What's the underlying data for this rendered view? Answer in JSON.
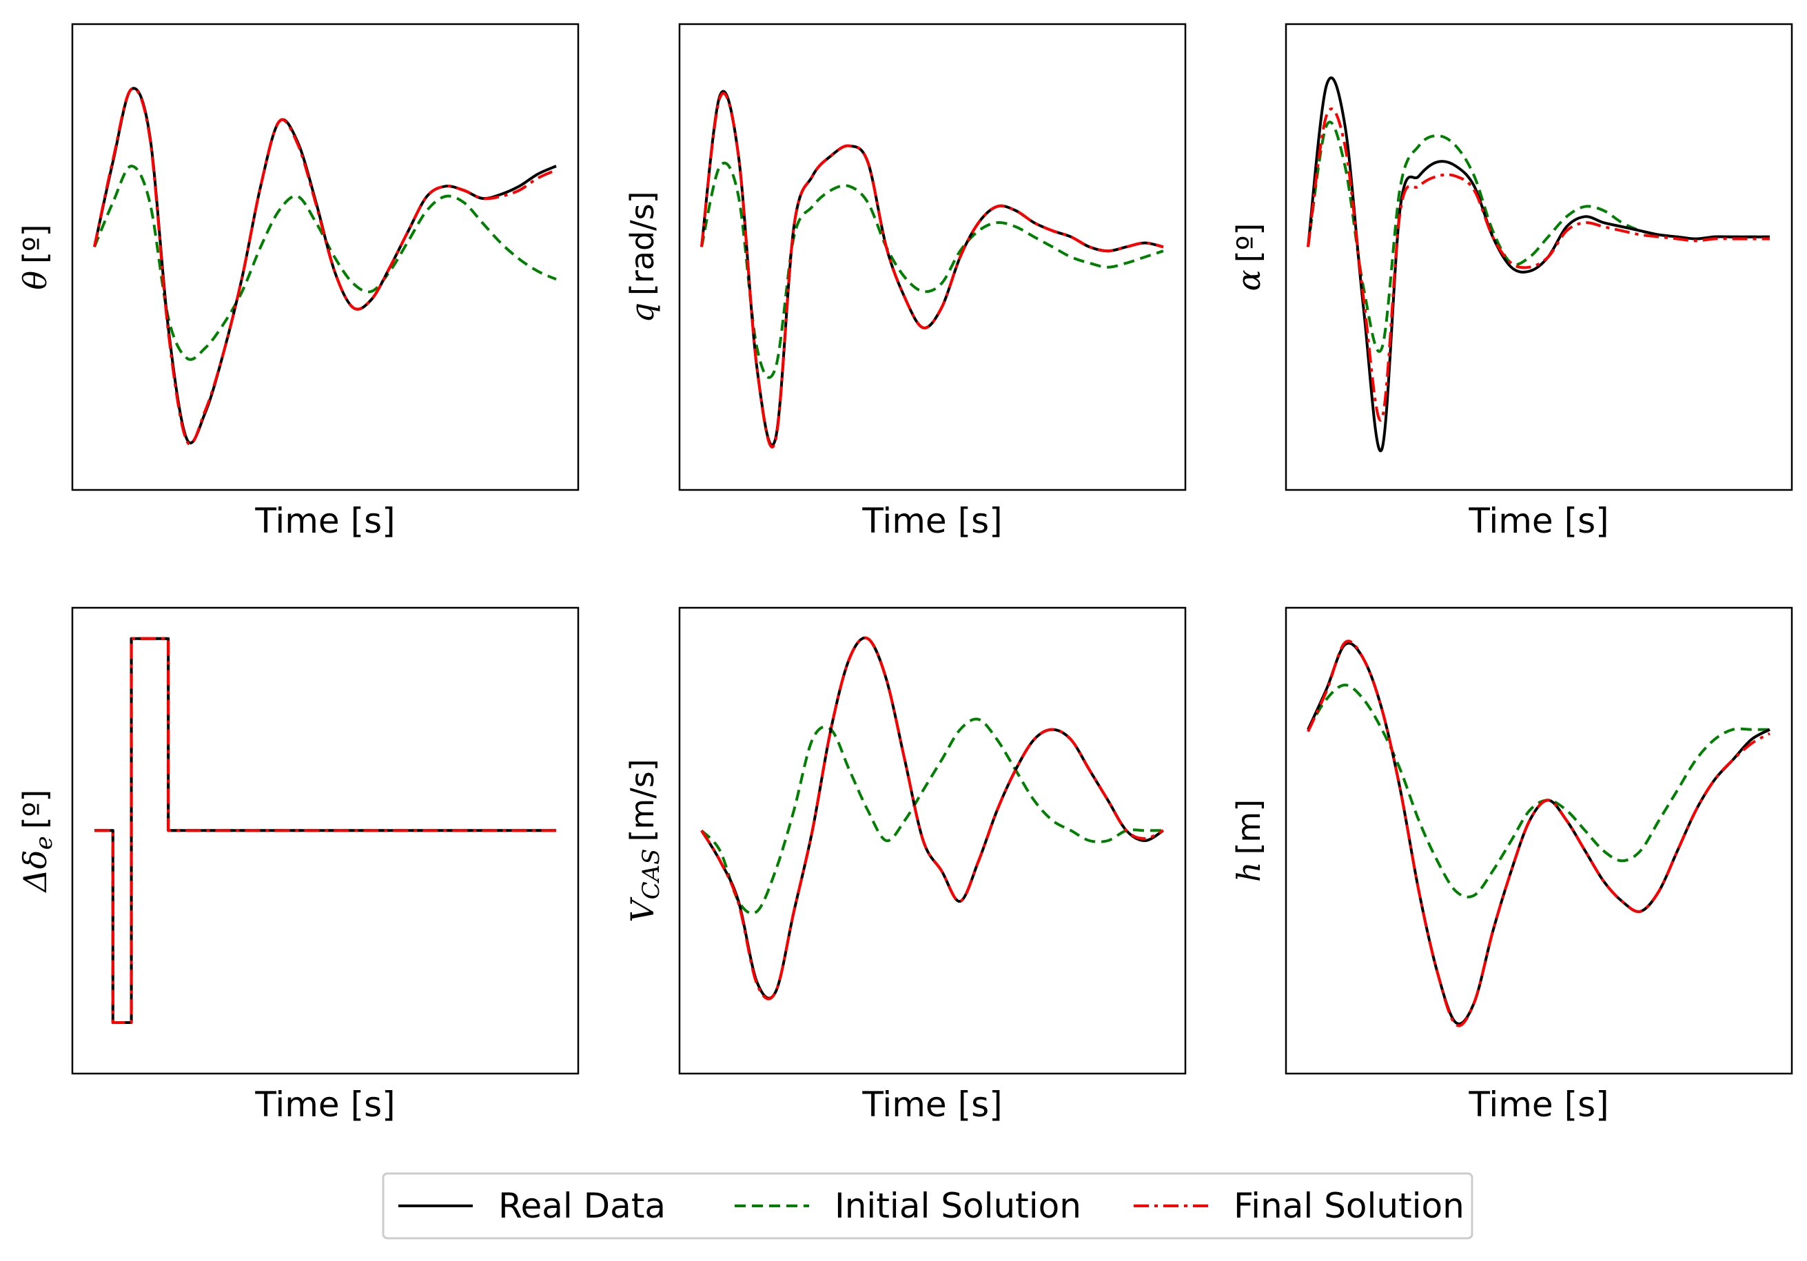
{
  "chart_data": [
    {
      "type": "line",
      "ylabel": {
        "symbol": "θ",
        "subscript": "",
        "unit": "[º]"
      },
      "xlabel": "Time [s]",
      "xlim": [
        0,
        10
      ],
      "ylim": [
        -1.1,
        1.0
      ],
      "ticks": "none",
      "series": [
        {
          "name": "Real Data",
          "x": [
            0,
            0.4,
            0.8,
            1.2,
            1.6,
            2.0,
            2.4,
            2.8,
            3.2,
            3.6,
            4.0,
            4.4,
            4.8,
            5.2,
            5.6,
            6.0,
            6.4,
            6.8,
            7.2,
            7.6,
            8.0,
            8.4,
            8.8,
            9.2,
            9.6,
            10
          ],
          "y": [
            0.0,
            0.42,
            0.78,
            0.55,
            -0.4,
            -0.95,
            -0.82,
            -0.52,
            -0.15,
            0.3,
            0.62,
            0.52,
            0.22,
            -0.12,
            -0.3,
            -0.26,
            -0.1,
            0.08,
            0.25,
            0.3,
            0.28,
            0.24,
            0.26,
            0.3,
            0.36,
            0.4
          ]
        },
        {
          "name": "Initial Solution",
          "x": [
            0,
            0.4,
            0.8,
            1.2,
            1.6,
            2.0,
            2.4,
            2.8,
            3.2,
            3.6,
            4.0,
            4.4,
            4.8,
            5.2,
            5.6,
            6.0,
            6.4,
            6.8,
            7.2,
            7.6,
            8.0,
            8.4,
            8.8,
            9.2,
            9.6,
            10
          ],
          "y": [
            0.0,
            0.22,
            0.4,
            0.22,
            -0.35,
            -0.55,
            -0.5,
            -0.38,
            -0.22,
            0.0,
            0.18,
            0.25,
            0.12,
            -0.05,
            -0.18,
            -0.22,
            -0.12,
            0.03,
            0.18,
            0.25,
            0.22,
            0.12,
            0.02,
            -0.06,
            -0.12,
            -0.16
          ]
        },
        {
          "name": "Final Solution",
          "x": [
            0,
            0.4,
            0.8,
            1.2,
            1.6,
            2.0,
            2.4,
            2.8,
            3.2,
            3.6,
            4.0,
            4.4,
            4.8,
            5.2,
            5.6,
            6.0,
            6.4,
            6.8,
            7.2,
            7.6,
            8.0,
            8.4,
            8.8,
            9.2,
            9.6,
            10
          ],
          "y": [
            0.0,
            0.43,
            0.78,
            0.54,
            -0.42,
            -0.96,
            -0.81,
            -0.52,
            -0.15,
            0.3,
            0.62,
            0.51,
            0.21,
            -0.12,
            -0.3,
            -0.26,
            -0.1,
            0.08,
            0.25,
            0.3,
            0.28,
            0.24,
            0.25,
            0.28,
            0.34,
            0.38
          ]
        }
      ]
    },
    {
      "type": "line",
      "ylabel": {
        "symbol": "q",
        "subscript": "",
        "unit": "[rad/s]"
      },
      "xlabel": "Time [s]",
      "xlim": [
        0,
        10
      ],
      "ylim": [
        -1.1,
        1.0
      ],
      "ticks": "none",
      "series": [
        {
          "name": "Real Data",
          "x": [
            0,
            0.4,
            0.8,
            1.2,
            1.6,
            2.0,
            2.4,
            2.8,
            3.2,
            3.6,
            4.0,
            4.4,
            4.8,
            5.2,
            5.6,
            6.0,
            6.4,
            6.8,
            7.2,
            7.6,
            8.0,
            8.4,
            8.8,
            9.2,
            9.6,
            10
          ],
          "y": [
            0.0,
            0.75,
            0.45,
            -0.6,
            -0.95,
            0.1,
            0.35,
            0.45,
            0.5,
            0.42,
            0.0,
            -0.25,
            -0.4,
            -0.3,
            -0.05,
            0.12,
            0.2,
            0.18,
            0.12,
            0.08,
            0.05,
            0.0,
            -0.02,
            0.0,
            0.02,
            0.0
          ]
        },
        {
          "name": "Initial Solution",
          "x": [
            0,
            0.4,
            0.8,
            1.2,
            1.6,
            2.0,
            2.4,
            2.8,
            3.2,
            3.6,
            4.0,
            4.4,
            4.8,
            5.2,
            5.6,
            6.0,
            6.4,
            6.8,
            7.2,
            7.6,
            8.0,
            8.4,
            8.8,
            9.2,
            9.6,
            10
          ],
          "y": [
            0.0,
            0.4,
            0.25,
            -0.5,
            -0.6,
            0.05,
            0.2,
            0.28,
            0.3,
            0.22,
            0.0,
            -0.15,
            -0.22,
            -0.18,
            -0.02,
            0.08,
            0.12,
            0.1,
            0.05,
            0.0,
            -0.05,
            -0.08,
            -0.1,
            -0.08,
            -0.05,
            -0.02
          ]
        },
        {
          "name": "Final Solution",
          "x": [
            0,
            0.4,
            0.8,
            1.2,
            1.6,
            2.0,
            2.4,
            2.8,
            3.2,
            3.6,
            4.0,
            4.4,
            4.8,
            5.2,
            5.6,
            6.0,
            6.4,
            6.8,
            7.2,
            7.6,
            8.0,
            8.4,
            8.8,
            9.2,
            9.6,
            10
          ],
          "y": [
            0.0,
            0.74,
            0.45,
            -0.6,
            -0.96,
            0.1,
            0.35,
            0.45,
            0.5,
            0.42,
            0.0,
            -0.25,
            -0.4,
            -0.3,
            -0.05,
            0.12,
            0.2,
            0.18,
            0.12,
            0.08,
            0.05,
            0.0,
            -0.02,
            0.0,
            0.02,
            0.0
          ]
        }
      ]
    },
    {
      "type": "line",
      "ylabel": {
        "symbol": "α",
        "subscript": "",
        "unit": "[º]"
      },
      "xlabel": "Time [s]",
      "xlim": [
        0,
        10
      ],
      "ylim": [
        -1.1,
        1.0
      ],
      "ticks": "none",
      "series": [
        {
          "name": "Real Data",
          "x": [
            0,
            0.4,
            0.8,
            1.2,
            1.6,
            2.0,
            2.4,
            2.8,
            3.2,
            3.6,
            4.0,
            4.4,
            4.8,
            5.2,
            5.6,
            6.0,
            6.4,
            6.8,
            7.2,
            7.6,
            8.0,
            8.4,
            8.8,
            9.2,
            9.6,
            10
          ],
          "y": [
            0.0,
            0.8,
            0.6,
            -0.3,
            -1.0,
            0.2,
            0.35,
            0.42,
            0.4,
            0.3,
            0.05,
            -0.1,
            -0.12,
            -0.05,
            0.1,
            0.15,
            0.12,
            0.1,
            0.08,
            0.06,
            0.05,
            0.04,
            0.05,
            0.05,
            0.05,
            0.05
          ]
        },
        {
          "name": "Initial Solution",
          "x": [
            0,
            0.4,
            0.8,
            1.2,
            1.6,
            2.0,
            2.4,
            2.8,
            3.2,
            3.6,
            4.0,
            4.4,
            4.8,
            5.2,
            5.6,
            6.0,
            6.4,
            6.8,
            7.2,
            7.6,
            8.0,
            8.4,
            8.8,
            9.2,
            9.6,
            10
          ],
          "y": [
            0.0,
            0.6,
            0.4,
            -0.2,
            -0.5,
            0.3,
            0.5,
            0.55,
            0.5,
            0.35,
            0.08,
            -0.08,
            -0.05,
            0.05,
            0.15,
            0.2,
            0.18,
            0.12,
            0.08,
            0.06,
            0.05,
            0.04,
            0.05,
            0.05,
            0.05,
            0.05
          ]
        },
        {
          "name": "Final Solution",
          "x": [
            0,
            0.4,
            0.8,
            1.2,
            1.6,
            2.0,
            2.4,
            2.8,
            3.2,
            3.6,
            4.0,
            4.4,
            4.8,
            5.2,
            5.6,
            6.0,
            6.4,
            6.8,
            7.2,
            7.6,
            8.0,
            8.4,
            8.8,
            9.2,
            9.6,
            10
          ],
          "y": [
            0.0,
            0.65,
            0.5,
            -0.25,
            -0.85,
            0.18,
            0.3,
            0.35,
            0.35,
            0.28,
            0.05,
            -0.08,
            -0.1,
            -0.05,
            0.08,
            0.12,
            0.1,
            0.08,
            0.06,
            0.05,
            0.04,
            0.03,
            0.04,
            0.04,
            0.04,
            0.04
          ]
        }
      ]
    },
    {
      "type": "line",
      "ylabel": {
        "symbol": "Δδ",
        "subscript": "e",
        "unit": "[º]"
      },
      "xlabel": "Time [s]",
      "xlim": [
        0,
        10
      ],
      "ylim": [
        -1.1,
        1.0
      ],
      "ticks": "none",
      "series": [
        {
          "name": "Real Data",
          "x": [
            0,
            0.4,
            0.4,
            0.8,
            0.8,
            1.6,
            1.6,
            10
          ],
          "y": [
            0,
            0,
            -0.95,
            -0.95,
            0.95,
            0.95,
            0,
            0
          ]
        },
        {
          "name": "Initial Solution",
          "x": [
            0,
            0.4,
            0.4,
            0.8,
            0.8,
            1.6,
            1.6,
            10
          ],
          "y": [
            0,
            0,
            -0.95,
            -0.95,
            0.95,
            0.95,
            0,
            0
          ]
        },
        {
          "name": "Final Solution",
          "x": [
            0,
            0.4,
            0.4,
            0.8,
            0.8,
            1.6,
            1.6,
            10
          ],
          "y": [
            0,
            0,
            -0.95,
            -0.95,
            0.95,
            0.95,
            0,
            0
          ]
        }
      ]
    },
    {
      "type": "line",
      "ylabel": {
        "symbol": "V",
        "subscript": "CAS",
        "unit": "[m/s]"
      },
      "xlabel": "Time [s]",
      "xlim": [
        0,
        10
      ],
      "ylim": [
        -1.1,
        1.0
      ],
      "ticks": "none",
      "series": [
        {
          "name": "Real Data",
          "x": [
            0,
            0.4,
            0.8,
            1.2,
            1.6,
            2.0,
            2.4,
            2.8,
            3.2,
            3.6,
            4.0,
            4.4,
            4.8,
            5.2,
            5.6,
            6.0,
            6.4,
            6.8,
            7.2,
            7.6,
            8.0,
            8.4,
            8.8,
            9.2,
            9.6,
            10
          ],
          "y": [
            0.0,
            -0.15,
            -0.35,
            -0.75,
            -0.8,
            -0.4,
            0.0,
            0.5,
            0.85,
            0.95,
            0.75,
            0.35,
            -0.05,
            -0.2,
            -0.35,
            -0.15,
            0.1,
            0.3,
            0.45,
            0.5,
            0.45,
            0.3,
            0.15,
            0.0,
            -0.05,
            0.0
          ]
        },
        {
          "name": "Initial Solution",
          "x": [
            0,
            0.4,
            0.8,
            1.2,
            1.6,
            2.0,
            2.4,
            2.8,
            3.2,
            3.6,
            4.0,
            4.4,
            4.8,
            5.2,
            5.6,
            6.0,
            6.4,
            6.8,
            7.2,
            7.6,
            8.0,
            8.4,
            8.8,
            9.2,
            9.6,
            10
          ],
          "y": [
            0.0,
            -0.1,
            -0.35,
            -0.4,
            -0.2,
            0.1,
            0.45,
            0.5,
            0.3,
            0.1,
            -0.05,
            0.05,
            0.2,
            0.35,
            0.5,
            0.55,
            0.45,
            0.3,
            0.15,
            0.05,
            0.0,
            -0.05,
            -0.05,
            0.0,
            0.0,
            0.0
          ]
        },
        {
          "name": "Final Solution",
          "x": [
            0,
            0.4,
            0.8,
            1.2,
            1.6,
            2.0,
            2.4,
            2.8,
            3.2,
            3.6,
            4.0,
            4.4,
            4.8,
            5.2,
            5.6,
            6.0,
            6.4,
            6.8,
            7.2,
            7.6,
            8.0,
            8.4,
            8.8,
            9.2,
            9.6,
            10
          ],
          "y": [
            0.0,
            -0.15,
            -0.36,
            -0.76,
            -0.8,
            -0.4,
            0.0,
            0.5,
            0.85,
            0.95,
            0.75,
            0.35,
            -0.05,
            -0.2,
            -0.35,
            -0.15,
            0.1,
            0.3,
            0.45,
            0.5,
            0.45,
            0.3,
            0.15,
            0.0,
            -0.04,
            0.0
          ]
        }
      ]
    },
    {
      "type": "line",
      "ylabel": {
        "symbol": "h",
        "subscript": "",
        "unit": "[m]"
      },
      "xlabel": "Time [s]",
      "xlim": [
        0,
        10
      ],
      "ylim": [
        -1.1,
        1.0
      ],
      "ticks": "none",
      "series": [
        {
          "name": "Real Data",
          "x": [
            0,
            0.4,
            0.8,
            1.2,
            1.6,
            2.0,
            2.4,
            2.8,
            3.2,
            3.6,
            4.0,
            4.4,
            4.8,
            5.2,
            5.6,
            6.0,
            6.4,
            6.8,
            7.2,
            7.6,
            8.0,
            8.4,
            8.8,
            9.2,
            9.6,
            10
          ],
          "y": [
            0.5,
            0.7,
            0.92,
            0.85,
            0.6,
            0.2,
            -0.3,
            -0.7,
            -0.95,
            -0.85,
            -0.5,
            -0.2,
            0.05,
            0.15,
            0.05,
            -0.1,
            -0.25,
            -0.35,
            -0.4,
            -0.3,
            -0.1,
            0.1,
            0.25,
            0.35,
            0.45,
            0.5
          ]
        },
        {
          "name": "Initial Solution",
          "x": [
            0,
            0.4,
            0.8,
            1.2,
            1.6,
            2.0,
            2.4,
            2.8,
            3.2,
            3.6,
            4.0,
            4.4,
            4.8,
            5.2,
            5.6,
            6.0,
            6.4,
            6.8,
            7.2,
            7.6,
            8.0,
            8.4,
            8.8,
            9.2,
            9.6,
            10
          ],
          "y": [
            0.5,
            0.65,
            0.72,
            0.65,
            0.5,
            0.3,
            0.05,
            -0.15,
            -0.3,
            -0.32,
            -0.2,
            -0.05,
            0.1,
            0.15,
            0.1,
            0.0,
            -0.1,
            -0.15,
            -0.1,
            0.05,
            0.2,
            0.35,
            0.45,
            0.5,
            0.5,
            0.5
          ]
        },
        {
          "name": "Final Solution",
          "x": [
            0,
            0.4,
            0.8,
            1.2,
            1.6,
            2.0,
            2.4,
            2.8,
            3.2,
            3.6,
            4.0,
            4.4,
            4.8,
            5.2,
            5.6,
            6.0,
            6.4,
            6.8,
            7.2,
            7.6,
            8.0,
            8.4,
            8.8,
            9.2,
            9.6,
            10
          ],
          "y": [
            0.49,
            0.69,
            0.93,
            0.85,
            0.6,
            0.2,
            -0.3,
            -0.7,
            -0.96,
            -0.85,
            -0.5,
            -0.2,
            0.05,
            0.15,
            0.05,
            -0.1,
            -0.25,
            -0.35,
            -0.4,
            -0.3,
            -0.1,
            0.1,
            0.25,
            0.35,
            0.43,
            0.48
          ]
        }
      ]
    }
  ],
  "legend": {
    "items": [
      {
        "label": "Real Data",
        "color": "#000000",
        "dash": "solid"
      },
      {
        "label": "Initial Solution",
        "color": "#008000",
        "dash": "dashed"
      },
      {
        "label": "Final Solution",
        "color": "#ff0000",
        "dash": "dashdot"
      }
    ]
  },
  "colors": {
    "real": "#000000",
    "initial": "#008000",
    "final": "#ff0000"
  }
}
